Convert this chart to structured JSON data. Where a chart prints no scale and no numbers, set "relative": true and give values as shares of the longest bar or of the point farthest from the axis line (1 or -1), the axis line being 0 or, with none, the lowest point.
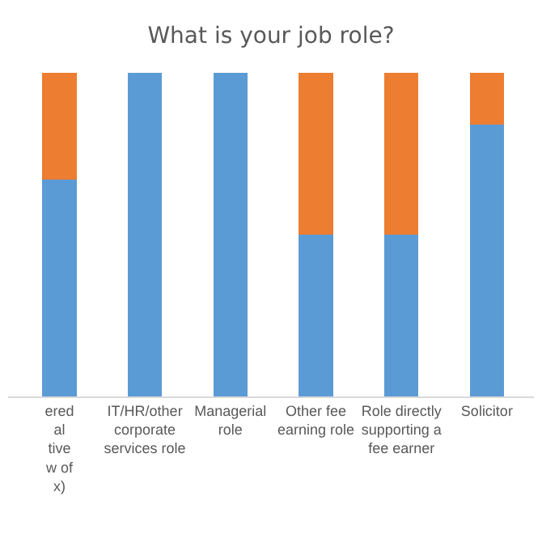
{
  "chart_data": {
    "type": "bar",
    "title": "What is your job role?",
    "relative": true,
    "stacked": true,
    "categories": [
      "ered\nal\ntive\nw of\nx)",
      "IT/HR/other\ncorporate\nservices role",
      "Managerial\nrole",
      "Other fee\nearning role",
      "Role directly\nsupporting a\nfee earner",
      "Solicitor"
    ],
    "series": [
      {
        "color": "#5b9bd5",
        "values": [
          0.67,
          1,
          1,
          0.5,
          0.5,
          0.84
        ]
      },
      {
        "color": "#ed7d31",
        "values": [
          0.33,
          0,
          0,
          0.5,
          0.5,
          0.16
        ]
      }
    ]
  }
}
